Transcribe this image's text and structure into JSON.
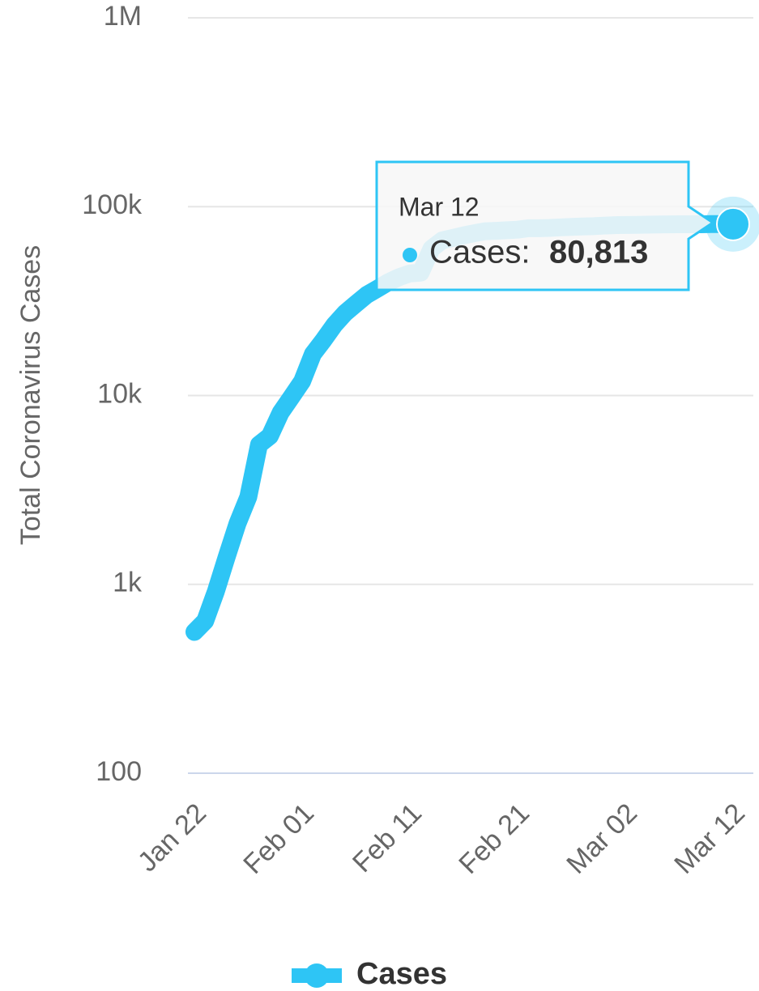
{
  "chart_data": {
    "type": "line",
    "y_label": "Total Coronavirus Cases",
    "categories": [
      "Jan 22",
      null,
      null,
      null,
      null,
      null,
      null,
      null,
      null,
      null,
      "Feb 01",
      null,
      null,
      null,
      null,
      null,
      null,
      null,
      null,
      null,
      "Feb 11",
      null,
      null,
      null,
      null,
      null,
      null,
      null,
      null,
      null,
      "Feb 21",
      null,
      null,
      null,
      null,
      null,
      null,
      null,
      null,
      null,
      "Mar 02",
      null,
      null,
      null,
      null,
      null,
      null,
      null,
      null,
      null,
      "Mar 12"
    ],
    "series": [
      {
        "name": "Cases",
        "color": "#2ec5f5",
        "values": [
          560,
          640,
          920,
          1400,
          2100,
          2900,
          5500,
          6100,
          8100,
          9800,
          11900,
          16600,
          19700,
          23700,
          27400,
          30600,
          34100,
          36800,
          39800,
          42300,
          44300,
          44700,
          59900,
          66300,
          68300,
          70500,
          72400,
          74100,
          74500,
          75000,
          75500,
          76900,
          76900,
          77200,
          77700,
          78100,
          78500,
          78800,
          79300,
          79800,
          80000,
          80100,
          80300,
          80400,
          80600,
          80700,
          80700,
          80700,
          80800,
          80800,
          80813
        ]
      }
    ],
    "ylim": [
      100,
      1000000
    ],
    "log_y": true,
    "yticks": [
      100,
      {
        "value": 1000,
        "label": "1k"
      },
      {
        "value": 10000,
        "label": "10k"
      },
      {
        "value": 100000,
        "label": "100k"
      },
      {
        "value": 1000000,
        "label": "1M"
      }
    ],
    "grid": true,
    "tooltip": {
      "date": "Mar 12",
      "label": "Cases:",
      "value": 80813,
      "value_label": "80,813"
    }
  }
}
